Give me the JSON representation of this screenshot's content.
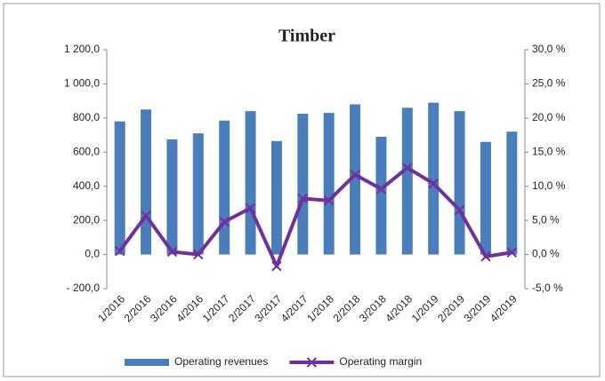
{
  "chart_data": {
    "type": "bar_line",
    "title": "Timber",
    "categories": [
      "1/2016",
      "2/2016",
      "3/2016",
      "4/2016",
      "1/2017",
      "2/2017",
      "3/2017",
      "4/2017",
      "1/2018",
      "2/2018",
      "3/2018",
      "4/2018",
      "1/2019",
      "2/2019",
      "3/2019",
      "4/2019"
    ],
    "series": [
      {
        "name": "Operating revenues",
        "color": "#4a7ebb",
        "type": "bar",
        "values": [
          780,
          850,
          675,
          710,
          785,
          840,
          665,
          825,
          830,
          880,
          690,
          860,
          890,
          840,
          660,
          720
        ]
      },
      {
        "name": "Operating margin",
        "color": "#7030a0",
        "type": "line",
        "axis": "y2",
        "values": [
          0.5,
          5.7,
          0.4,
          0.0,
          4.8,
          6.8,
          -1.7,
          8.2,
          7.9,
          11.7,
          9.6,
          12.7,
          10.4,
          6.5,
          -0.3,
          0.3
        ]
      }
    ],
    "ylim": [
      -200,
      1200
    ],
    "yticks": [
      {
        "value": -200,
        "label": "- 200,0"
      },
      {
        "value": 0,
        "label": "0,0"
      },
      {
        "value": 200,
        "label": "200,0"
      },
      {
        "value": 400,
        "label": "400,0"
      },
      {
        "value": 600,
        "label": "600,0"
      },
      {
        "value": 800,
        "label": "800,0"
      },
      {
        "value": 1000,
        "label": "1 000,0"
      },
      {
        "value": 1200,
        "label": "1 200,0"
      }
    ],
    "y2lim": [
      -5,
      30
    ],
    "y2ticks": [
      {
        "value": -5,
        "label": "-5,0 %"
      },
      {
        "value": 0,
        "label": "0,0 %"
      },
      {
        "value": 5,
        "label": "5,0 %"
      },
      {
        "value": 10,
        "label": "10,0 %"
      },
      {
        "value": 15,
        "label": "15,0 %"
      },
      {
        "value": 20,
        "label": "20,0 %"
      },
      {
        "value": 25,
        "label": "25,0 %"
      },
      {
        "value": 30,
        "label": "30,0 %"
      }
    ],
    "legend": "bottom"
  }
}
